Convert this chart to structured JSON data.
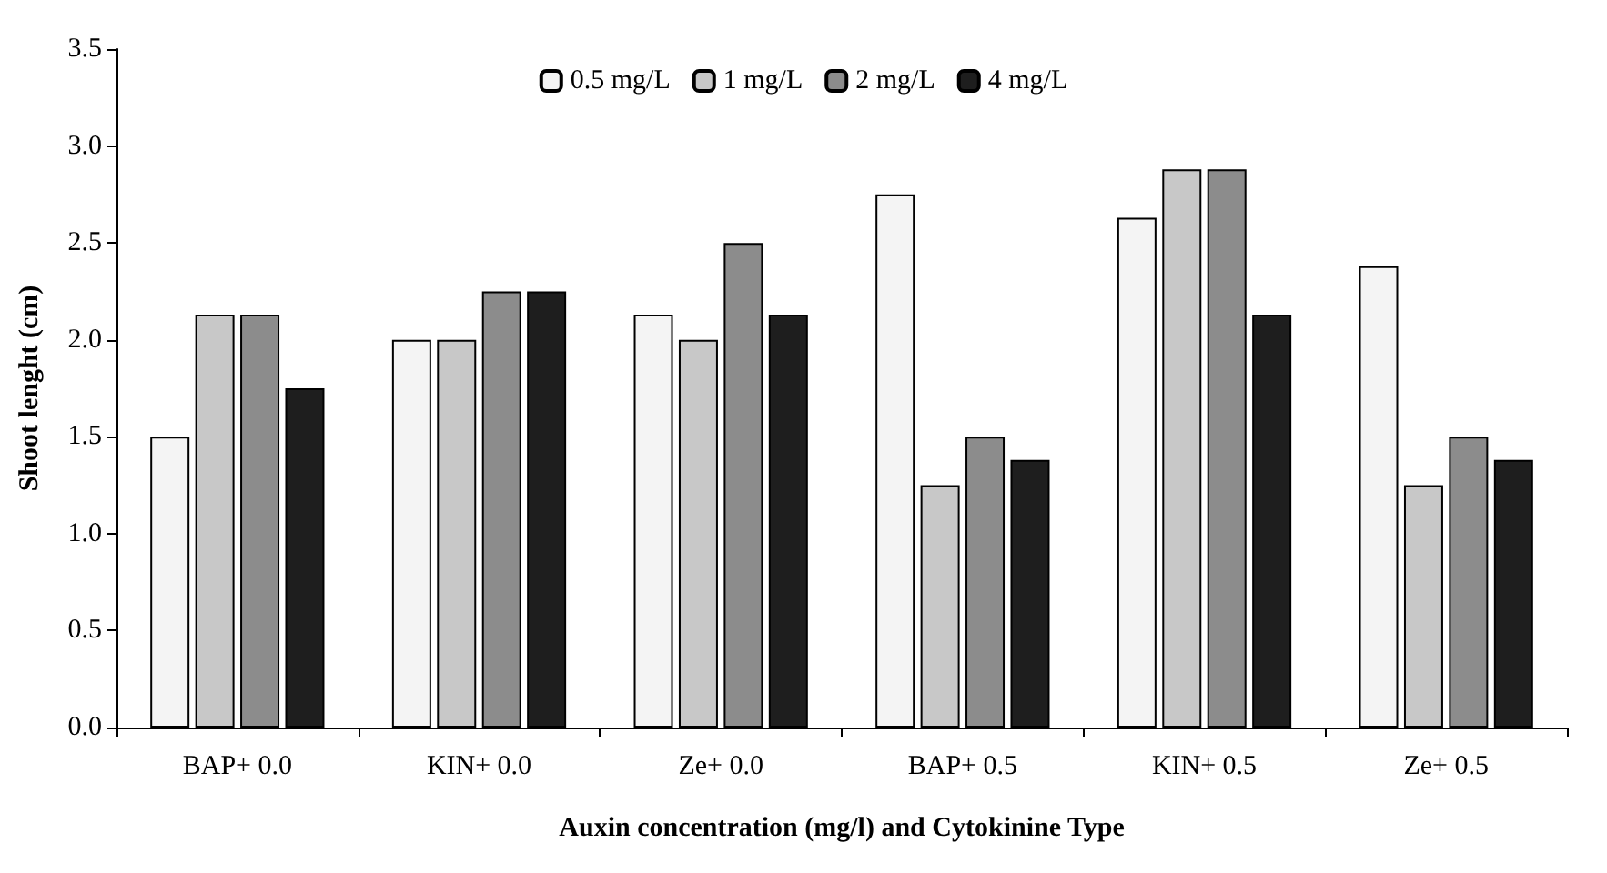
{
  "chart_data": {
    "type": "bar",
    "xlabel": "Auxin concentration (mg/l) and Cytokinine Type",
    "ylabel": "Shoot lenght (cm)",
    "categories": [
      "BAP+ 0.0",
      "KIN+ 0.0",
      "Ze+ 0.0",
      "BAP+ 0.5",
      "KIN+ 0.5",
      "Ze+ 0.5"
    ],
    "series": [
      {
        "name": "0.5 mg/L",
        "color": "#f4f4f4",
        "values": [
          1.5,
          2.0,
          2.13,
          2.75,
          2.63,
          2.38
        ]
      },
      {
        "name": "1 mg/L",
        "color": "#c8c8c8",
        "values": [
          2.13,
          2.0,
          2.0,
          1.25,
          2.88,
          1.25
        ]
      },
      {
        "name": "2 mg/L",
        "color": "#8c8c8c",
        "values": [
          2.13,
          2.25,
          2.5,
          1.5,
          2.88,
          1.5
        ]
      },
      {
        "name": "4 mg/L",
        "color": "#1e1e1e",
        "values": [
          1.75,
          2.25,
          2.13,
          1.38,
          2.13,
          1.38
        ]
      }
    ],
    "ylim": [
      0,
      3.5
    ],
    "yticks": [
      {
        "value": 0,
        "label": "0.0"
      },
      {
        "value": 0.5,
        "label": "0.5"
      },
      {
        "value": 1,
        "label": "1.0"
      },
      {
        "value": 1.5,
        "label": "1.5"
      },
      {
        "value": 2,
        "label": "2.0"
      },
      {
        "value": 2.5,
        "label": "2.5"
      },
      {
        "value": 3,
        "label": "3.0"
      },
      {
        "value": 3.5,
        "label": "3.5"
      }
    ],
    "grid": false,
    "legend": "top"
  }
}
